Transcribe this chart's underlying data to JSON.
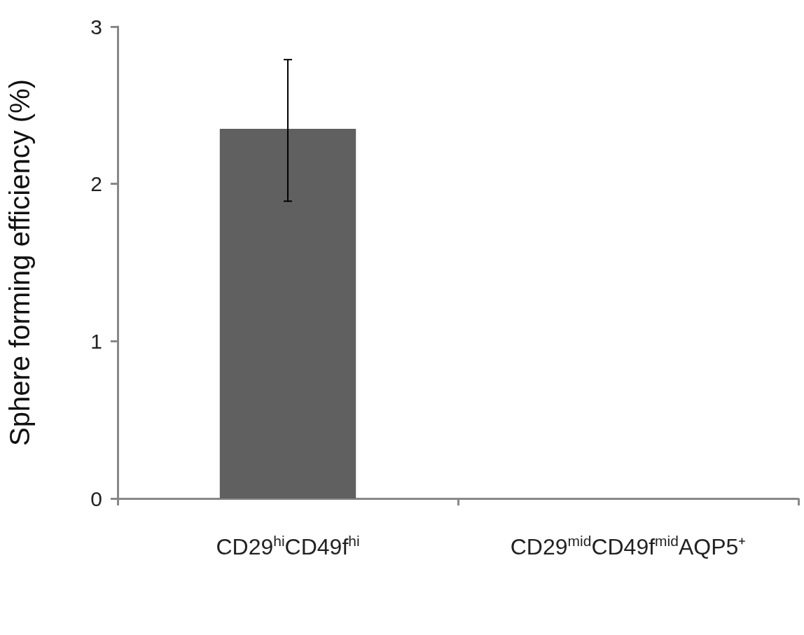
{
  "chart_data": {
    "type": "bar",
    "ylabel": "Sphere forming efficiency (%)",
    "categories": [
      "CD29$^{hi}$CD49f$^{hi}$",
      "CD29$^{mid}$CD49f$^{mid}$AQP5⁺"
    ],
    "values": [
      2.35,
      0
    ],
    "errors": [
      [
        1.89,
        2.79
      ],
      null
    ],
    "color": "#606060",
    "ylim": [
      0,
      3
    ],
    "yticks": [
      0,
      1,
      2,
      3
    ],
    "grid": false
  }
}
